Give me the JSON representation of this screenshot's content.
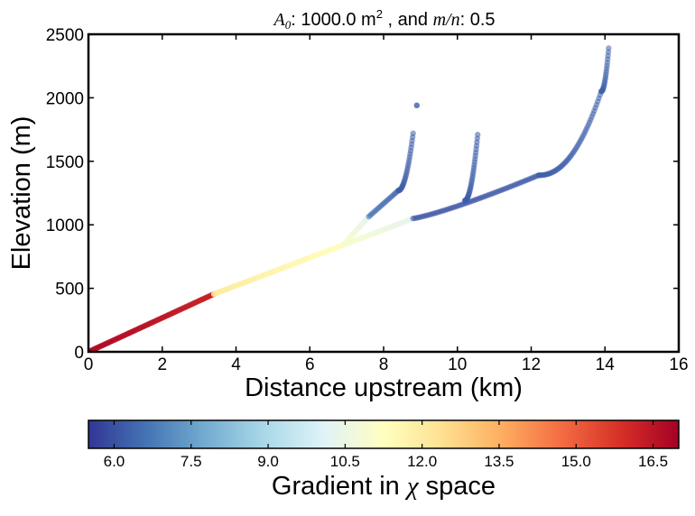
{
  "chart_data": {
    "type": "scatter",
    "title": {
      "a0_sym": "A",
      "a0_sub": "0",
      "a0_value": ": 1000.0 m",
      "a0_sup": "2",
      "joiner": " , and ",
      "mn_sym": "m/n",
      "mn_value": ": 0.5"
    },
    "xlabel": "Distance upstream (km)",
    "ylabel": "Elevation (m)",
    "xlim": [
      0,
      16
    ],
    "ylim": [
      0,
      2500
    ],
    "xticks": [
      0,
      2,
      4,
      6,
      8,
      10,
      12,
      14,
      16
    ],
    "yticks": [
      0,
      500,
      1000,
      1500,
      2000,
      2500
    ],
    "grid": false,
    "colorbar": {
      "label_text": "Gradient in ",
      "label_symbol": "χ",
      "label_suffix": " space",
      "range": [
        5.5,
        17.0
      ],
      "ticks": [
        6.0,
        7.5,
        9.0,
        10.5,
        12.0,
        13.5,
        15.0,
        16.5
      ],
      "colormap": [
        "#313695",
        "#4575b4",
        "#74add1",
        "#abd9e9",
        "#e0f3f8",
        "#ffffbf",
        "#fee090",
        "#fdae61",
        "#f46d43",
        "#d73027",
        "#a50026"
      ]
    },
    "series": [
      {
        "segments": [
          {
            "x": [
              0.0,
              3.4
            ],
            "y": [
              0,
              455
            ],
            "gradient": [
              16.8,
              16.2
            ],
            "curve": 1.0
          },
          {
            "x": [
              3.4,
              6.9
            ],
            "y": [
              455,
              840
            ],
            "gradient": [
              12.0,
              11.3
            ],
            "curve": 1.0
          }
        ]
      },
      {
        "segments": [
          {
            "x": [
              6.9,
              7.6
            ],
            "y": [
              840,
              1065
            ],
            "gradient": [
              11.0,
              10.3
            ],
            "curve": 1.0
          },
          {
            "x": [
              7.6,
              8.4
            ],
            "y": [
              1065,
              1270
            ],
            "gradient": [
              6.6,
              6.3
            ],
            "curve": 1.0
          },
          {
            "x": [
              8.4,
              8.8
            ],
            "y": [
              1270,
              1720
            ],
            "gradient": [
              6.2,
              6.2
            ],
            "curve": 2.0
          },
          {
            "x": [
              8.9,
              8.9
            ],
            "y": [
              1940,
              1940
            ],
            "gradient": [
              6.2,
              6.2
            ],
            "curve": 1.0
          }
        ]
      },
      {
        "segments": [
          {
            "x": [
              6.9,
              8.8
            ],
            "y": [
              840,
              1050
            ],
            "gradient": [
              11.0,
              10.3
            ],
            "curve": 1.0
          },
          {
            "x": [
              8.8,
              12.2
            ],
            "y": [
              1050,
              1390
            ],
            "gradient": [
              6.0,
              6.1
            ],
            "curve": 1.2
          },
          {
            "x": [
              12.2,
              13.9
            ],
            "y": [
              1390,
              2050
            ],
            "gradient": [
              6.2,
              6.3
            ],
            "curve": 2.2
          },
          {
            "x": [
              13.9,
              14.1
            ],
            "y": [
              2050,
              2390
            ],
            "gradient": [
              6.3,
              6.3
            ],
            "curve": 2.0
          }
        ]
      },
      {
        "segments": [
          {
            "x": [
              10.2,
              10.55
            ],
            "y": [
              1190,
              1710
            ],
            "gradient": [
              6.2,
              6.2
            ],
            "curve": 2.0
          }
        ]
      }
    ]
  }
}
